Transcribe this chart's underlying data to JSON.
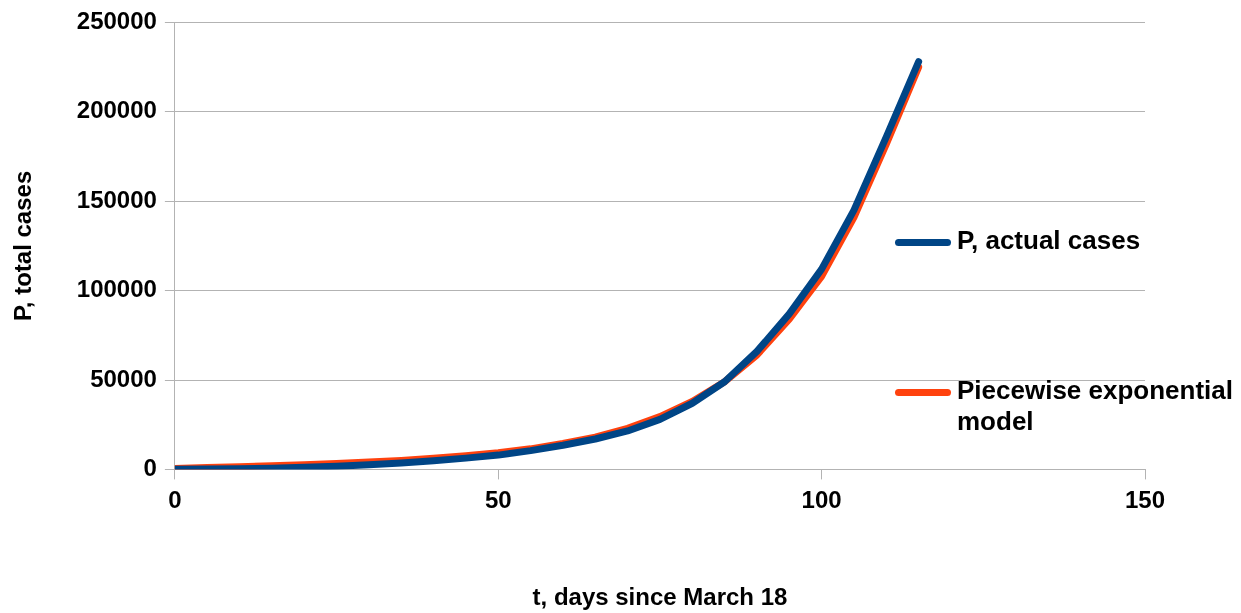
{
  "chart_data": {
    "type": "line",
    "xlabel": "t, days since March 18",
    "ylabel": "P, total cases",
    "xlim": [
      0,
      150
    ],
    "xticks": [
      0,
      50,
      100,
      150
    ],
    "ylim": [
      0,
      250000
    ],
    "yticks": [
      0,
      50000,
      100000,
      150000,
      200000,
      250000
    ],
    "grid": "y",
    "legend": "right",
    "marker": "none",
    "line_style": "solid",
    "series": [
      {
        "name": "P, actual cases",
        "color": "#004586",
        "x": [
          0,
          5,
          10,
          15,
          20,
          25,
          30,
          35,
          40,
          45,
          50,
          55,
          60,
          65,
          70,
          75,
          80,
          85,
          90,
          95,
          100,
          105,
          110,
          115
        ],
        "values": [
          100,
          200,
          400,
          700,
          1200,
          1800,
          2600,
          3600,
          4800,
          6300,
          8000,
          10500,
          13500,
          17000,
          21500,
          28000,
          37000,
          49000,
          66000,
          87000,
          112000,
          145000,
          186000,
          228000
        ]
      },
      {
        "name": "Piecewise exponential model",
        "color": "#ff420e",
        "x": [
          0,
          5,
          10,
          15,
          20,
          25,
          30,
          35,
          40,
          45,
          50,
          55,
          60,
          65,
          70,
          75,
          80,
          85,
          90,
          95,
          100,
          105,
          110,
          115
        ],
        "values": [
          500,
          1000,
          1500,
          2000,
          2600,
          3300,
          4100,
          5000,
          6200,
          7600,
          9300,
          11500,
          14500,
          18000,
          23000,
          29500,
          38000,
          49000,
          64000,
          84000,
          108000,
          141000,
          182000,
          225000
        ]
      }
    ]
  }
}
